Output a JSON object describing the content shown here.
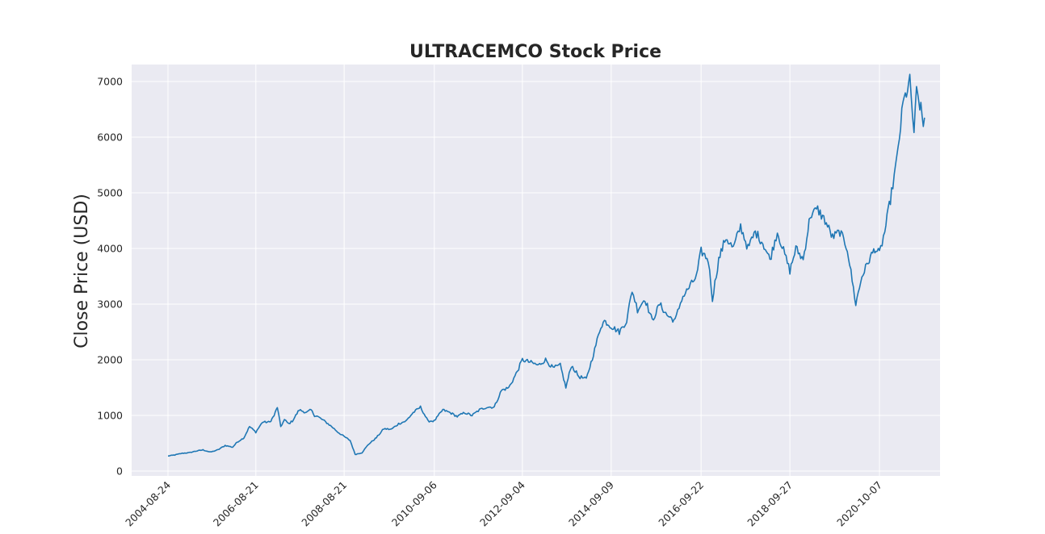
{
  "chart_data": {
    "type": "line",
    "title": "ULTRACEMCO Stock Price",
    "xlabel": "",
    "ylabel": "Close Price (USD)",
    "ylim": [
      0,
      7000
    ],
    "yticks": [
      0,
      1000,
      2000,
      3000,
      4000,
      5000,
      6000,
      7000
    ],
    "xticks": [
      "2004-08-24",
      "2006-08-21",
      "2008-08-21",
      "2010-09-06",
      "2012-09-04",
      "2014-09-09",
      "2016-09-22",
      "2018-09-27",
      "2020-10-07"
    ],
    "grid": true,
    "colors": {
      "line": "#1f77b4",
      "axes_bg": "#eaeaf2",
      "grid": "#ffffff"
    },
    "series": [
      {
        "x": [
          "2004-08-24",
          "2004-10-20",
          "2004-12-20",
          "2005-02-15",
          "2005-04-15",
          "2005-06-10",
          "2005-08-10",
          "2005-10-10",
          "2005-12-10",
          "2006-02-10",
          "2006-03-20",
          "2006-05-15",
          "2006-06-30",
          "2006-08-21",
          "2006-10-15",
          "2006-12-15",
          "2007-01-20",
          "2007-02-15",
          "2007-03-15",
          "2007-04-15",
          "2007-05-20",
          "2007-06-20",
          "2007-08-15",
          "2007-10-15",
          "2007-11-20",
          "2007-12-20",
          "2008-01-15",
          "2008-03-10",
          "2008-05-10",
          "2008-06-30",
          "2008-08-21",
          "2008-10-10",
          "2008-11-20",
          "2009-01-15",
          "2009-03-10",
          "2009-05-15",
          "2009-07-15",
          "2009-09-15",
          "2009-11-15",
          "2010-01-15",
          "2010-03-15",
          "2010-05-15",
          "2010-07-15",
          "2010-09-06",
          "2010-11-15",
          "2011-01-15",
          "2011-03-15",
          "2011-05-15",
          "2011-07-15",
          "2011-09-15",
          "2011-11-15",
          "2012-01-15",
          "2012-03-15",
          "2012-05-15",
          "2012-07-15",
          "2012-09-04",
          "2012-11-15",
          "2013-01-15",
          "2013-03-15",
          "2013-05-15",
          "2013-07-15",
          "2013-08-30",
          "2013-10-15",
          "2013-12-15",
          "2014-02-15",
          "2014-04-15",
          "2014-06-15",
          "2014-07-15",
          "2014-09-09",
          "2014-11-15",
          "2015-01-15",
          "2015-03-01",
          "2015-04-15",
          "2015-06-15",
          "2015-08-15",
          "2015-10-15",
          "2015-12-15",
          "2016-02-20",
          "2016-04-15",
          "2016-06-15",
          "2016-08-15",
          "2016-09-22",
          "2016-11-20",
          "2016-12-25",
          "2017-02-15",
          "2017-04-15",
          "2017-06-15",
          "2017-08-15",
          "2017-10-15",
          "2017-12-15",
          "2018-02-15",
          "2018-04-15",
          "2018-06-15",
          "2018-07-15",
          "2018-09-27",
          "2018-11-15",
          "2019-01-15",
          "2019-03-15",
          "2019-05-15",
          "2019-07-15",
          "2019-09-15",
          "2019-11-15",
          "2020-01-15",
          "2020-03-25",
          "2020-05-15",
          "2020-07-15",
          "2020-08-30",
          "2020-10-07",
          "2020-11-20",
          "2021-01-15",
          "2021-03-01",
          "2021-04-20",
          "2021-06-15",
          "2021-07-20",
          "2021-08-10",
          "2021-09-15",
          "2021-10-05",
          "2021-10-15"
        ],
        "y": [
          270,
          290,
          320,
          330,
          360,
          380,
          340,
          380,
          460,
          430,
          520,
          600,
          800,
          700,
          880,
          880,
          1000,
          1150,
          800,
          920,
          850,
          900,
          1100,
          1050,
          1100,
          1000,
          980,
          900,
          800,
          700,
          620,
          550,
          300,
          330,
          480,
          600,
          760,
          750,
          850,
          900,
          1050,
          1150,
          900,
          900,
          1100,
          1050,
          980,
          1050,
          1000,
          1100,
          1150,
          1150,
          1450,
          1500,
          1750,
          2000,
          1950,
          1900,
          2000,
          1850,
          1900,
          1500,
          1900,
          1700,
          1650,
          2100,
          2600,
          2700,
          2600,
          2500,
          2700,
          3250,
          2900,
          3100,
          2700,
          3000,
          2800,
          2700,
          3100,
          3300,
          3500,
          3950,
          3800,
          3100,
          3800,
          4200,
          4000,
          4400,
          4000,
          4300,
          4100,
          3800,
          4300,
          4100,
          3600,
          4000,
          3800,
          4600,
          4700,
          4500,
          4200,
          4300,
          4000,
          3000,
          3500,
          3800,
          4000,
          3900,
          4300,
          5000,
          5600,
          6600,
          7000,
          6100,
          6800,
          6500,
          6200,
          6350
        ]
      }
    ]
  }
}
